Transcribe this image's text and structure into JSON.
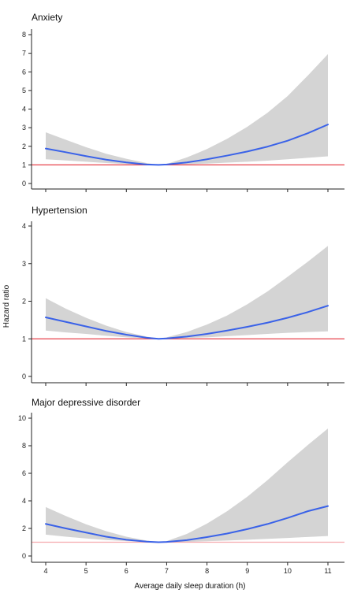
{
  "figure": {
    "ylabel": "Hazard ratio",
    "xlabel": "Average daily sleep duration (h)",
    "x_ticks": [
      4,
      5,
      6,
      7,
      8,
      9,
      10,
      11
    ],
    "colors": {
      "curve": "#3a62e8",
      "band": "#d4d4d4",
      "reference": "#e8424b",
      "axis": "#222222"
    }
  },
  "chart_data": [
    {
      "type": "line",
      "title": "Anxiety",
      "xlim": [
        4,
        11
      ],
      "ylim": [
        0,
        8
      ],
      "y_ticks": [
        0,
        1,
        2,
        3,
        4,
        5,
        6,
        7,
        8
      ],
      "reference_line": 1,
      "x": [
        4.0,
        4.5,
        5.0,
        5.5,
        6.0,
        6.5,
        6.8,
        7.0,
        7.5,
        8.0,
        8.5,
        9.0,
        9.5,
        10.0,
        10.5,
        11.0
      ],
      "hr": [
        1.88,
        1.68,
        1.47,
        1.28,
        1.13,
        1.02,
        1.0,
        1.02,
        1.13,
        1.3,
        1.5,
        1.72,
        1.98,
        2.3,
        2.7,
        3.17
      ],
      "lower": [
        1.3,
        1.24,
        1.17,
        1.1,
        1.04,
        1.0,
        1.0,
        1.0,
        1.03,
        1.07,
        1.12,
        1.17,
        1.23,
        1.3,
        1.38,
        1.46
      ],
      "upper": [
        2.75,
        2.35,
        1.95,
        1.6,
        1.33,
        1.1,
        1.0,
        1.05,
        1.4,
        1.85,
        2.4,
        3.05,
        3.8,
        4.7,
        5.8,
        6.95
      ]
    },
    {
      "type": "line",
      "title": "Hypertension",
      "xlim": [
        4,
        11
      ],
      "ylim": [
        0,
        4
      ],
      "y_ticks": [
        0,
        1,
        2,
        3,
        4
      ],
      "reference_line": 1,
      "x": [
        4.0,
        4.5,
        5.0,
        5.5,
        6.0,
        6.5,
        6.8,
        7.0,
        7.5,
        8.0,
        8.5,
        9.0,
        9.5,
        10.0,
        10.5,
        11.0
      ],
      "hr": [
        1.57,
        1.45,
        1.33,
        1.21,
        1.11,
        1.03,
        1.0,
        1.01,
        1.06,
        1.13,
        1.22,
        1.32,
        1.43,
        1.56,
        1.71,
        1.88
      ],
      "lower": [
        1.22,
        1.17,
        1.13,
        1.08,
        1.04,
        1.01,
        1.0,
        1.0,
        1.02,
        1.04,
        1.07,
        1.1,
        1.13,
        1.16,
        1.18,
        1.2
      ],
      "upper": [
        2.08,
        1.8,
        1.56,
        1.35,
        1.18,
        1.06,
        1.0,
        1.04,
        1.18,
        1.38,
        1.62,
        1.92,
        2.26,
        2.65,
        3.05,
        3.47
      ]
    },
    {
      "type": "line",
      "title": "Major depressive disorder",
      "xlim": [
        4,
        11
      ],
      "ylim": [
        0,
        10
      ],
      "y_ticks": [
        0,
        2,
        4,
        6,
        8,
        10
      ],
      "reference_line": 1,
      "x": [
        4.0,
        4.5,
        5.0,
        5.5,
        6.0,
        6.5,
        6.8,
        7.0,
        7.5,
        8.0,
        8.5,
        9.0,
        9.5,
        10.0,
        10.5,
        11.0
      ],
      "hr": [
        2.33,
        2.0,
        1.7,
        1.4,
        1.18,
        1.04,
        1.0,
        1.02,
        1.15,
        1.37,
        1.63,
        1.95,
        2.32,
        2.76,
        3.25,
        3.62
      ],
      "lower": [
        1.55,
        1.4,
        1.27,
        1.16,
        1.08,
        1.02,
        1.0,
        1.0,
        1.03,
        1.07,
        1.12,
        1.18,
        1.24,
        1.31,
        1.38,
        1.45
      ],
      "upper": [
        3.55,
        2.9,
        2.3,
        1.8,
        1.4,
        1.12,
        1.0,
        1.08,
        1.6,
        2.35,
        3.25,
        4.3,
        5.5,
        6.8,
        8.05,
        9.25
      ]
    }
  ]
}
